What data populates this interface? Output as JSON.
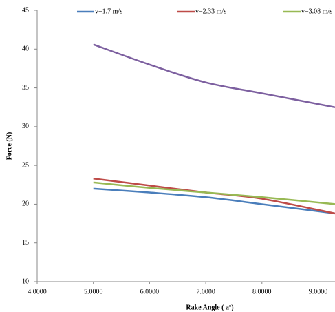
{
  "chart_data": {
    "type": "line",
    "x_label": "Rake Angle ( aº)",
    "y_label": "Force (N)",
    "x": [
      5,
      6,
      7,
      8,
      9.3
    ],
    "series": [
      {
        "name": "v=1.7 m/s",
        "color": "#4a7ebb",
        "values": [
          22,
          21.5,
          20.9,
          20,
          18.8
        ]
      },
      {
        "name": "v=2.33 m/s",
        "color": "#be4b48",
        "values": [
          23.3,
          22.4,
          21.5,
          20.7,
          18.8
        ]
      },
      {
        "name": "v=3.08 m/s",
        "color": "#98b954",
        "values": [
          22.8,
          22.1,
          21.5,
          20.9,
          20
        ]
      },
      {
        "color": "#7d60a0",
        "values": [
          40.6,
          38,
          35.7,
          34.3,
          32.5
        ]
      }
    ],
    "xlim": [
      4,
      9.3
    ],
    "ylim": [
      10,
      45
    ],
    "xticks": [
      {
        "value": 4,
        "label": "4.0000"
      },
      {
        "value": 5,
        "label": "5.0000"
      },
      {
        "value": 6,
        "label": "6.0000"
      },
      {
        "value": 7,
        "label": "7.0000"
      },
      {
        "value": 8,
        "label": "8.0000"
      },
      {
        "value": 9,
        "label": "9.0000"
      }
    ],
    "yticks": [
      10,
      15,
      20,
      25,
      30,
      35,
      40,
      45
    ]
  }
}
